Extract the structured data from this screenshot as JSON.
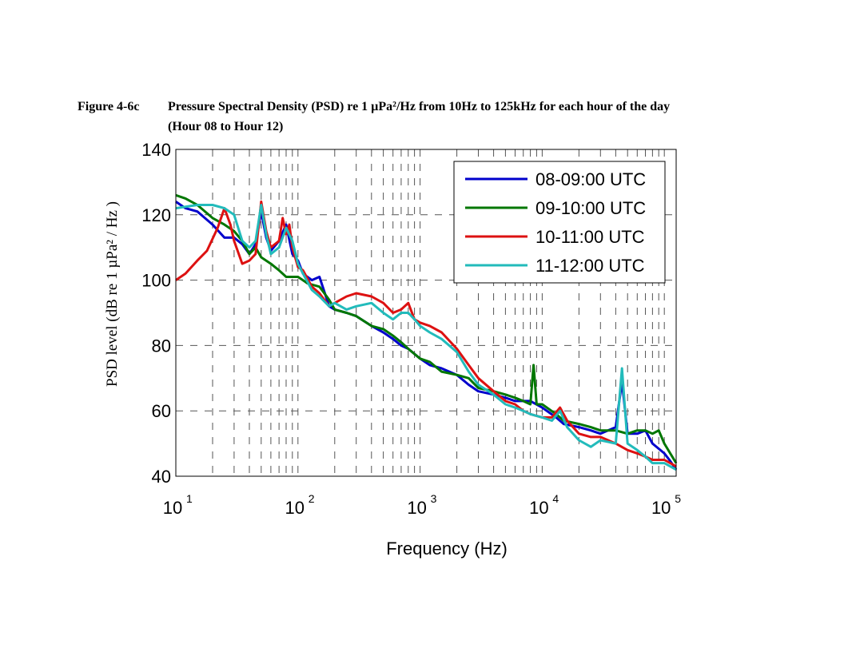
{
  "figure": {
    "label": "Figure 4-6c",
    "caption_line1": "Pressure Spectral Density (PSD) re 1 µPa²/Hz from 10Hz to 125kHz for each hour of the day",
    "caption_line2": "(Hour 08 to Hour 12)"
  },
  "chart_data": {
    "type": "line",
    "xlabel": "Frequency (Hz)",
    "ylabel": "PSD level (dB re 1 µPa² / Hz )",
    "xscale": "log",
    "xlim": [
      10,
      125000
    ],
    "ylim": [
      40,
      140
    ],
    "x_ticks": [
      10,
      100,
      1000,
      10000,
      100000
    ],
    "x_tick_labels": [
      {
        "base": "10",
        "exp": "1"
      },
      {
        "base": "10",
        "exp": "2"
      },
      {
        "base": "10",
        "exp": "3"
      },
      {
        "base": "10",
        "exp": "4"
      },
      {
        "base": "10",
        "exp": "5"
      }
    ],
    "y_ticks": [
      40,
      60,
      80,
      100,
      120,
      140
    ],
    "y_tick_labels": [
      "40",
      "60",
      "80",
      "100",
      "120",
      "140"
    ],
    "grid": true,
    "legend_position": "top-right",
    "series": [
      {
        "name": "08-09:00 UTC",
        "color": "#0000cc",
        "points": [
          [
            10,
            124
          ],
          [
            12,
            122
          ],
          [
            15,
            121
          ],
          [
            20,
            117
          ],
          [
            25,
            113
          ],
          [
            30,
            113
          ],
          [
            35,
            111
          ],
          [
            40,
            108
          ],
          [
            45,
            111
          ],
          [
            50,
            121
          ],
          [
            55,
            113
          ],
          [
            60,
            109
          ],
          [
            70,
            112
          ],
          [
            80,
            117
          ],
          [
            90,
            108
          ],
          [
            100,
            106
          ],
          [
            110,
            102
          ],
          [
            130,
            100
          ],
          [
            150,
            101
          ],
          [
            180,
            92
          ],
          [
            200,
            91
          ],
          [
            250,
            90
          ],
          [
            300,
            89
          ],
          [
            400,
            86
          ],
          [
            500,
            84
          ],
          [
            600,
            82
          ],
          [
            700,
            80
          ],
          [
            800,
            79
          ],
          [
            1000,
            76
          ],
          [
            1200,
            74
          ],
          [
            1500,
            73
          ],
          [
            2000,
            71
          ],
          [
            2500,
            68
          ],
          [
            3000,
            66
          ],
          [
            4000,
            65
          ],
          [
            5000,
            64
          ],
          [
            6000,
            63
          ],
          [
            7000,
            63
          ],
          [
            8000,
            63
          ],
          [
            10000,
            61
          ],
          [
            13000,
            58
          ],
          [
            15000,
            56
          ],
          [
            20000,
            55
          ],
          [
            25000,
            54
          ],
          [
            30000,
            53
          ],
          [
            40000,
            55
          ],
          [
            45000,
            69
          ],
          [
            50000,
            53
          ],
          [
            60000,
            53
          ],
          [
            70000,
            54
          ],
          [
            80000,
            50
          ],
          [
            100000,
            47
          ],
          [
            110000,
            45
          ],
          [
            125000,
            42
          ]
        ]
      },
      {
        "name": "09-10:00 UTC",
        "color": "#007700",
        "points": [
          [
            10,
            126
          ],
          [
            12,
            125
          ],
          [
            15,
            123
          ],
          [
            20,
            119
          ],
          [
            25,
            117
          ],
          [
            30,
            115
          ],
          [
            35,
            112
          ],
          [
            40,
            108
          ],
          [
            45,
            110
          ],
          [
            50,
            107
          ],
          [
            60,
            105
          ],
          [
            70,
            103
          ],
          [
            80,
            101
          ],
          [
            100,
            101
          ],
          [
            120,
            99
          ],
          [
            150,
            98
          ],
          [
            180,
            94
          ],
          [
            200,
            91
          ],
          [
            250,
            90
          ],
          [
            300,
            89
          ],
          [
            400,
            86
          ],
          [
            500,
            85
          ],
          [
            600,
            83
          ],
          [
            700,
            81
          ],
          [
            800,
            79
          ],
          [
            1000,
            76
          ],
          [
            1200,
            75
          ],
          [
            1500,
            72
          ],
          [
            2000,
            71
          ],
          [
            2500,
            70
          ],
          [
            3000,
            67
          ],
          [
            4000,
            66
          ],
          [
            5000,
            65
          ],
          [
            6000,
            64
          ],
          [
            7000,
            63
          ],
          [
            8000,
            62
          ],
          [
            8500,
            74
          ],
          [
            9000,
            62
          ],
          [
            10000,
            62
          ],
          [
            13000,
            59
          ],
          [
            15000,
            57
          ],
          [
            20000,
            56
          ],
          [
            25000,
            55
          ],
          [
            30000,
            54
          ],
          [
            40000,
            54
          ],
          [
            50000,
            53
          ],
          [
            60000,
            54
          ],
          [
            70000,
            54
          ],
          [
            80000,
            53
          ],
          [
            90000,
            54
          ],
          [
            100000,
            50
          ],
          [
            125000,
            44
          ]
        ]
      },
      {
        "name": "10-11:00 UTC",
        "color": "#dd1111",
        "points": [
          [
            10,
            100
          ],
          [
            12,
            102
          ],
          [
            15,
            106
          ],
          [
            18,
            109
          ],
          [
            22,
            116
          ],
          [
            25,
            122
          ],
          [
            28,
            117
          ],
          [
            30,
            112
          ],
          [
            35,
            105
          ],
          [
            40,
            106
          ],
          [
            45,
            108
          ],
          [
            50,
            124
          ],
          [
            55,
            115
          ],
          [
            60,
            110
          ],
          [
            70,
            112
          ],
          [
            75,
            119
          ],
          [
            80,
            114
          ],
          [
            85,
            117
          ],
          [
            90,
            110
          ],
          [
            100,
            104
          ],
          [
            110,
            103
          ],
          [
            130,
            98
          ],
          [
            150,
            96
          ],
          [
            180,
            92
          ],
          [
            200,
            93
          ],
          [
            250,
            95
          ],
          [
            300,
            96
          ],
          [
            400,
            95
          ],
          [
            500,
            93
          ],
          [
            600,
            90
          ],
          [
            700,
            91
          ],
          [
            800,
            93
          ],
          [
            900,
            88
          ],
          [
            1000,
            87
          ],
          [
            1200,
            86
          ],
          [
            1500,
            84
          ],
          [
            2000,
            79
          ],
          [
            2500,
            74
          ],
          [
            3000,
            70
          ],
          [
            4000,
            66
          ],
          [
            5000,
            63
          ],
          [
            6000,
            62
          ],
          [
            7000,
            60
          ],
          [
            8000,
            59
          ],
          [
            10000,
            58
          ],
          [
            12000,
            58
          ],
          [
            14000,
            61
          ],
          [
            16000,
            57
          ],
          [
            20000,
            53
          ],
          [
            25000,
            52
          ],
          [
            30000,
            52
          ],
          [
            40000,
            50
          ],
          [
            50000,
            48
          ],
          [
            60000,
            47
          ],
          [
            70000,
            46
          ],
          [
            80000,
            45
          ],
          [
            100000,
            45
          ],
          [
            125000,
            43
          ]
        ]
      },
      {
        "name": "11-12:00 UTC",
        "color": "#22bbbb",
        "points": [
          [
            10,
            122
          ],
          [
            15,
            123
          ],
          [
            20,
            123
          ],
          [
            25,
            122
          ],
          [
            30,
            120
          ],
          [
            35,
            112
          ],
          [
            40,
            110
          ],
          [
            45,
            112
          ],
          [
            50,
            123
          ],
          [
            55,
            114
          ],
          [
            60,
            108
          ],
          [
            70,
            110
          ],
          [
            80,
            116
          ],
          [
            90,
            112
          ],
          [
            100,
            105
          ],
          [
            110,
            102
          ],
          [
            130,
            97
          ],
          [
            150,
            95
          ],
          [
            180,
            92
          ],
          [
            200,
            93
          ],
          [
            250,
            91
          ],
          [
            300,
            92
          ],
          [
            400,
            93
          ],
          [
            500,
            90
          ],
          [
            600,
            88
          ],
          [
            700,
            90
          ],
          [
            800,
            90
          ],
          [
            900,
            88
          ],
          [
            1000,
            86
          ],
          [
            1200,
            84
          ],
          [
            1500,
            82
          ],
          [
            2000,
            78
          ],
          [
            2500,
            72
          ],
          [
            3000,
            68
          ],
          [
            4000,
            65
          ],
          [
            5000,
            62
          ],
          [
            6000,
            61
          ],
          [
            7000,
            60
          ],
          [
            8000,
            59
          ],
          [
            10000,
            58
          ],
          [
            12000,
            57
          ],
          [
            14000,
            60
          ],
          [
            16000,
            55
          ],
          [
            20000,
            51
          ],
          [
            25000,
            49
          ],
          [
            30000,
            51
          ],
          [
            40000,
            50
          ],
          [
            45000,
            73
          ],
          [
            50000,
            50
          ],
          [
            60000,
            48
          ],
          [
            70000,
            46
          ],
          [
            80000,
            44
          ],
          [
            100000,
            44
          ],
          [
            125000,
            42
          ]
        ]
      }
    ]
  }
}
